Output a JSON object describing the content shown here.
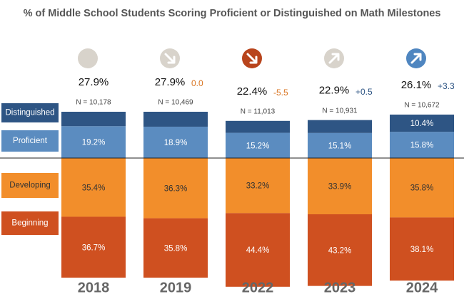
{
  "chart_data": {
    "type": "diverging-stacked-bar",
    "title": "% of Middle School Students Scoring Proficient or Distinguished on Math Milestones",
    "categories": [
      "2018",
      "2019",
      "2022",
      "2023",
      "2024"
    ],
    "series": [
      {
        "name": "Distinguished",
        "color": "#2e5584",
        "values": [
          8.7,
          9.0,
          7.2,
          7.8,
          10.4
        ],
        "value_labels": [
          null,
          null,
          null,
          null,
          "10.4%"
        ]
      },
      {
        "name": "Proficient",
        "color": "#5b8cc0",
        "values": [
          19.2,
          18.9,
          15.2,
          15.1,
          15.8
        ],
        "value_labels": [
          "19.2%",
          "18.9%",
          "15.2%",
          "15.1%",
          "15.8%"
        ]
      },
      {
        "name": "Developing",
        "color": "#f28e2b",
        "values": [
          35.4,
          36.3,
          33.2,
          33.9,
          35.8
        ],
        "value_labels": [
          "35.4%",
          "36.3%",
          "33.2%",
          "33.9%",
          "35.8%"
        ]
      },
      {
        "name": "Beginning",
        "color": "#cf5020",
        "values": [
          36.7,
          35.8,
          44.4,
          43.2,
          38.1
        ],
        "value_labels": [
          "36.7%",
          "35.8%",
          "44.4%",
          "43.2%",
          "38.1%"
        ]
      }
    ],
    "totals": {
      "values": [
        27.9,
        27.9,
        22.4,
        22.9,
        26.1
      ],
      "value_labels": [
        "27.9%",
        "27.9%",
        "22.4%",
        "22.9%",
        "26.1%"
      ]
    },
    "changes": {
      "values": [
        null,
        0.0,
        -5.5,
        0.5,
        3.3
      ],
      "value_labels": [
        null,
        "0.0",
        "-5.5",
        "+0.5",
        "+3.3"
      ]
    },
    "sample_sizes": {
      "values": [
        10178,
        10469,
        11013,
        10931,
        10672
      ],
      "value_labels": [
        "N = 10,178",
        "N = 10,469",
        "N = 11,013",
        "N = 10,931",
        "N = 10,672"
      ]
    }
  }
}
